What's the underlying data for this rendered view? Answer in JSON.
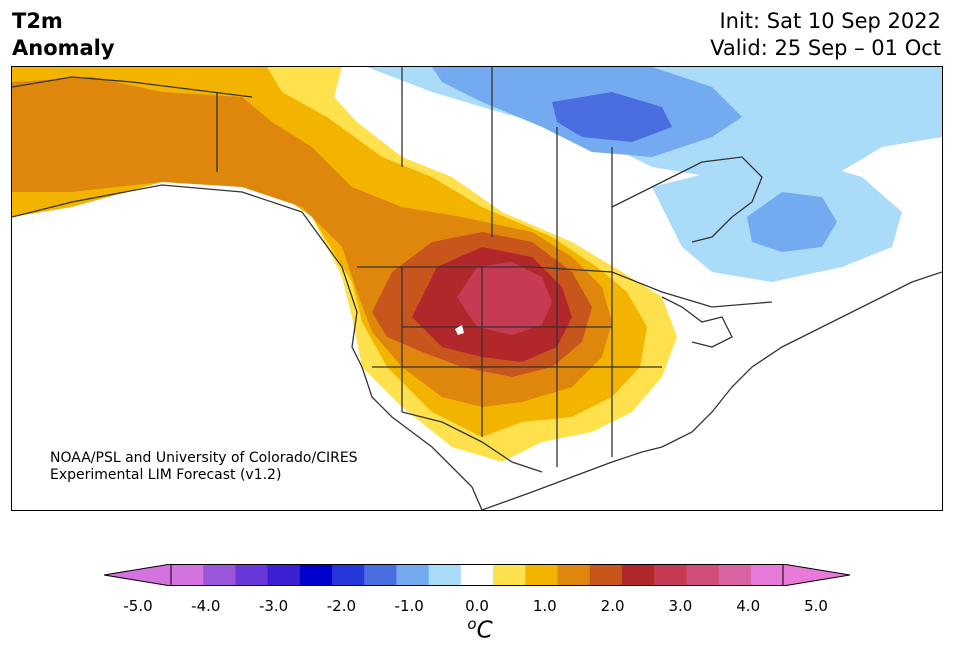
{
  "header": {
    "title_line1": "T2m",
    "title_line2": "Anomaly",
    "init": "Init: Sat 10 Sep 2022",
    "valid": "Valid: 25 Sep – 01 Oct"
  },
  "credit": {
    "line1": "NOAA/PSL and University of Colorado/CIRES",
    "line2": "Experimental LIM Forecast (v1.2)"
  },
  "colorbar": {
    "bins": [
      -5.0,
      -4.5,
      -4.0,
      -3.5,
      -3.0,
      -2.5,
      -2.0,
      -1.5,
      -1.0,
      -0.5,
      0.5,
      1.0,
      1.5,
      2.0,
      2.5,
      3.0,
      3.5,
      4.0,
      4.5,
      5.0
    ],
    "colors": [
      "#d473e0",
      "#9b56dc",
      "#6a37d8",
      "#3b1fd1",
      "#0000cd",
      "#2537d8",
      "#4a6ee0",
      "#74aaf0",
      "#aadcfa",
      "#ffffff",
      "#ffe14d",
      "#f3b400",
      "#df860c",
      "#c8561c",
      "#b1272a",
      "#c63a53",
      "#d04f7a",
      "#d962a2",
      "#e779d9"
    ],
    "low_extend_color": "#d473e0",
    "high_extend_color": "#e779d9",
    "tick_labels": [
      "-5.0",
      "-4.0",
      "-3.0",
      "-2.0",
      "-1.0",
      "0.0",
      "1.0",
      "2.0",
      "3.0",
      "4.0",
      "5.0"
    ],
    "unit_deg": "o",
    "unit_letter": "C"
  },
  "map": {
    "region": "North America",
    "variable": "2-m temperature anomaly",
    "features": [
      "warm-anomaly-west-central-us",
      "cold-anomaly-northern-canada",
      "cold-anomaly-hudson-bay-quebec"
    ]
  }
}
